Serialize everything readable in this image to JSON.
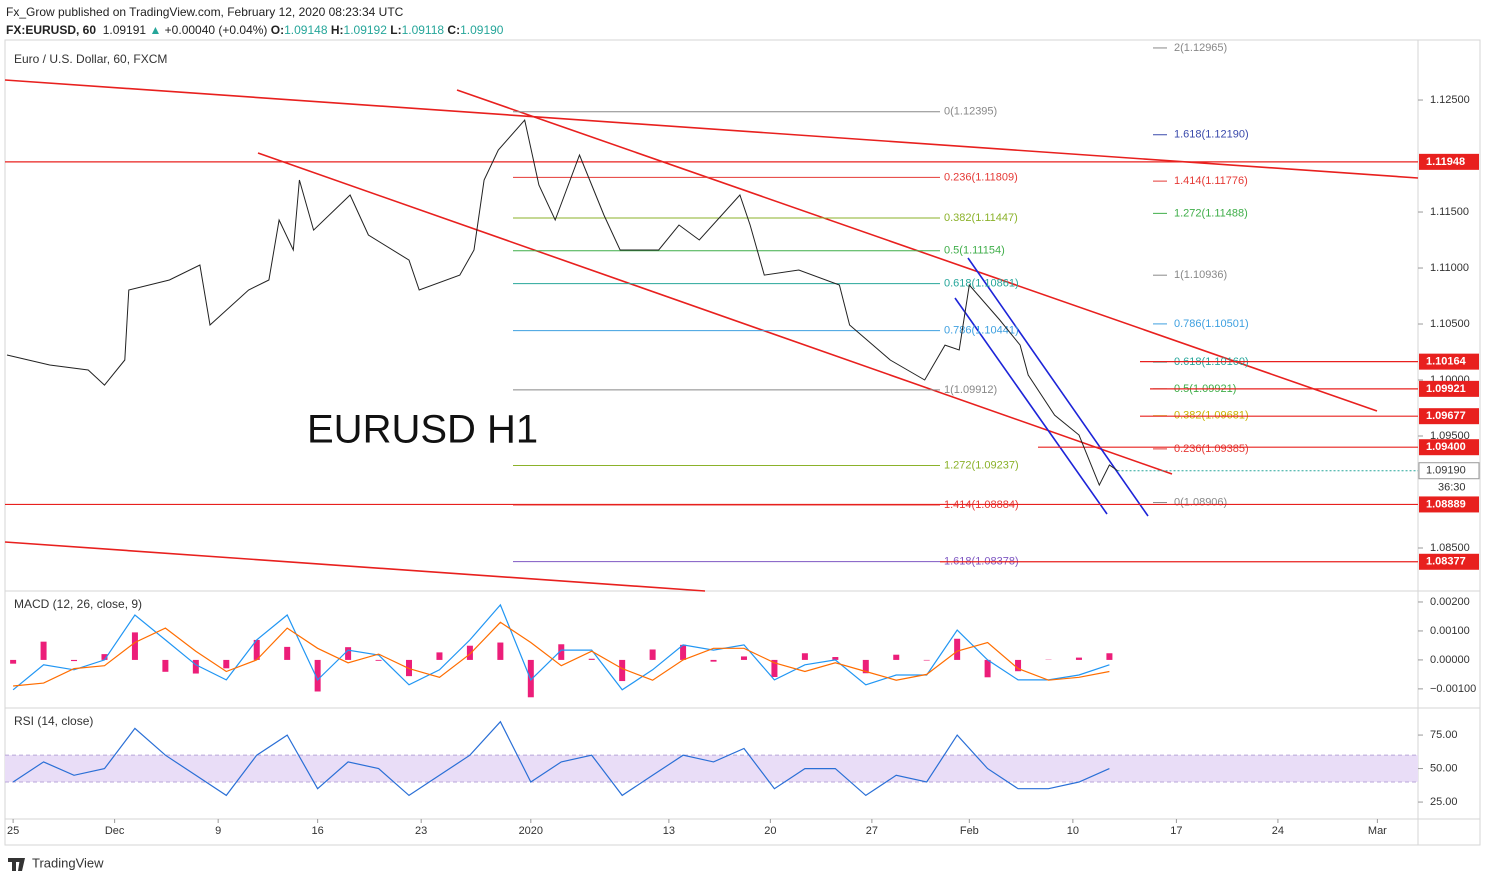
{
  "header": {
    "publisher": "Fx_Grow published on TradingView.com, February 12, 2020 08:23:34 UTC",
    "symbol": "FX:EURUSD, 60",
    "last": "1.09191",
    "change": "+0.00040 (+0.04%)",
    "ohlc": [
      {
        "label": "O:",
        "value": "1.09148"
      },
      {
        "label": "H:",
        "value": "1.09192"
      },
      {
        "label": "L:",
        "value": "1.09118"
      },
      {
        "label": "C:",
        "value": "1.09190"
      }
    ]
  },
  "watermark": "EURUSD H1",
  "footer": "TradingView",
  "chart_data": [
    {
      "type": "line",
      "title": "Euro / U.S. Dollar, 60, FXCM",
      "color": "#222222",
      "x": [
        -0.3,
        1.8,
        3.7,
        4.5,
        5.5,
        5.7,
        7.7,
        9.2,
        9.7,
        11.6,
        12.6,
        13.1,
        13.8,
        14.1,
        14.8,
        16.6,
        17.5,
        19.5,
        20.0,
        22.0,
        22.7,
        23.2,
        23.9,
        25.2,
        25.9,
        26.7,
        27.9,
        29.1,
        29.9,
        31.8,
        32.8,
        33.8,
        35.8,
        36.3,
        37.0,
        38.7,
        40.7,
        41.2,
        43.2,
        44.9,
        45.9,
        46.6,
        47.1,
        48.6,
        49.6,
        50.0,
        51.3,
        52.5,
        53.5,
        54.0,
        54.4
      ],
      "values": [
        1.10223,
        1.10134,
        1.10089,
        1.09955,
        1.10179,
        1.10804,
        1.10893,
        1.11027,
        1.10491,
        1.10804,
        1.10893,
        1.11429,
        1.11161,
        1.11786,
        1.11339,
        1.11652,
        1.11295,
        1.11071,
        1.10804,
        1.10937,
        1.11161,
        1.11786,
        1.12054,
        1.12321,
        1.11741,
        1.11429,
        1.12009,
        1.11473,
        1.11161,
        1.11161,
        1.11384,
        1.1125,
        1.11652,
        1.11384,
        1.10937,
        1.10982,
        1.10848,
        1.10491,
        1.10179,
        1.1,
        1.10312,
        1.10268,
        1.10848,
        1.10536,
        1.10312,
        1.10045,
        1.09687,
        1.09509,
        1.09062,
        1.09241,
        1.09191
      ],
      "xlim": [
        -0.4,
        69.2
      ],
      "ylim": [
        1.08125,
        1.13036
      ],
      "yticks": [
        {
          "value": 1.125,
          "label": "1.12500"
        },
        {
          "value": 1.115,
          "label": "1.11500"
        },
        {
          "value": 1.11,
          "label": "1.11000"
        },
        {
          "value": 1.105,
          "label": "1.10500"
        },
        {
          "value": 1.1,
          "label": "1.10000"
        },
        {
          "value": 1.095,
          "label": "1.09500"
        },
        {
          "value": 1.085,
          "label": "1.08500"
        }
      ],
      "levels": [
        {
          "value": 1.11948,
          "label": "1.11948"
        },
        {
          "value": 1.10164,
          "label": "1.10164"
        },
        {
          "value": 1.09921,
          "label": "1.09921"
        },
        {
          "value": 1.09677,
          "label": "1.09677"
        },
        {
          "value": 1.094,
          "label": "1.09400"
        },
        {
          "value": 1.08889,
          "label": "1.08889"
        },
        {
          "value": 1.08377,
          "label": "1.08377"
        }
      ],
      "last_price": {
        "value": 1.0919,
        "label": "1.09190"
      },
      "countdown": "36:30",
      "fib_left": [
        {
          "label": "0(1.12395)",
          "value": 1.12395,
          "color": "#888888"
        },
        {
          "label": "0.236(1.11809)",
          "value": 1.11809,
          "color": "#e53935"
        },
        {
          "label": "0.382(1.11447)",
          "value": 1.11447,
          "color": "#8bb22a"
        },
        {
          "label": "0.5(1.11154)",
          "value": 1.11154,
          "color": "#3fae49"
        },
        {
          "label": "0.618(1.10861)",
          "value": 1.10861,
          "color": "#26a69a"
        },
        {
          "label": "0.786(1.10441)",
          "value": 1.10441,
          "color": "#3ea0e0"
        },
        {
          "label": "1(1.09912)",
          "value": 1.09912,
          "color": "#888888"
        },
        {
          "label": "1.272(1.09237)",
          "value": 1.09237,
          "color": "#8bb22a"
        },
        {
          "label": "1.414(1.08884)",
          "value": 1.08884,
          "color": "#e53935"
        },
        {
          "label": "1.618(1.08378)",
          "value": 1.08378,
          "color": "#7e57c2"
        }
      ],
      "fib_right": [
        {
          "label": "2(1.12965)",
          "value": 1.12965,
          "color": "#888888"
        },
        {
          "label": "1.618(1.12190)",
          "value": 1.1219,
          "color": "#3949ab"
        },
        {
          "label": "1.414(1.11776)",
          "value": 1.11776,
          "color": "#e53935"
        },
        {
          "label": "1.272(1.11488)",
          "value": 1.11488,
          "color": "#3fae49"
        },
        {
          "label": "1(1.10936)",
          "value": 1.10936,
          "color": "#888888"
        },
        {
          "label": "0.786(1.10501)",
          "value": 1.10501,
          "color": "#3ea0e0"
        },
        {
          "label": "0.618(1.10160)",
          "value": 1.1016,
          "color": "#26a69a"
        },
        {
          "label": "0.5(1.09921)",
          "value": 1.09921,
          "color": "#3fae49"
        },
        {
          "label": "0.382(1.09681)",
          "value": 1.09681,
          "color": "#c8b400"
        },
        {
          "label": "0.236(1.09385)",
          "value": 1.09385,
          "color": "#e53935"
        },
        {
          "label": "0(1.08906)",
          "value": 1.08906,
          "color": "#888888"
        }
      ]
    },
    {
      "type": "macd",
      "title": "MACD (12, 26, close, 9)",
      "x": [
        0,
        1.5,
        3,
        4.5,
        6,
        7.5,
        9,
        10.5,
        12,
        13.5,
        15,
        16.5,
        18,
        19.5,
        21,
        22.5,
        24,
        25.5,
        27,
        28.5,
        30,
        31.5,
        33,
        34.5,
        36,
        37.5,
        39,
        40.5,
        42,
        43.5,
        45,
        46.5,
        48,
        49.5,
        51,
        52.5,
        54
      ],
      "series": [
        {
          "color": "#2196f3",
          "values": [
            -0.00103,
            -0.00017,
            -0.00034,
            0,
            0.00155,
            0.00069,
            -0.00017,
            -0.00069,
            0.00069,
            0.00155,
            -0.00069,
            0.00034,
            0.00017,
            -0.00086,
            -0.00034,
            0.00069,
            0.0019,
            -0.00069,
            0.00034,
            0.00034,
            -0.00103,
            -0.00034,
            0.00052,
            0.00034,
            0.00052,
            -0.00069,
            -0.00017,
            0,
            -0.00086,
            -0.00052,
            -0.00052,
            0.00103,
            0,
            -0.00069,
            -0.00069,
            -0.00052,
            -0.00017
          ]
        },
        {
          "color": "#ff6d00",
          "values": [
            -0.0009,
            -0.0008,
            -0.0003,
            -0.0002,
            0.0006,
            0.0011,
            0.0003,
            -0.0004,
            0,
            0.0011,
            0.0004,
            -0.0001,
            0.0002,
            -0.0003,
            -0.0006,
            0.0002,
            0.0013,
            0.0006,
            -0.0002,
            0.0003,
            -0.0003,
            -0.0007,
            0,
            0.0004,
            0.0004,
            -0.0001,
            -0.0004,
            -0.0001,
            -0.0004,
            -0.0007,
            -0.0005,
            0.0003,
            0.0006,
            -0.0003,
            -0.0007,
            -0.0006,
            -0.0004
          ]
        }
      ],
      "histogram": {
        "color": "#ec1e79",
        "values": [
          -0.00013,
          0.00063,
          -4e-05,
          0.0002,
          0.00095,
          -0.00041,
          -0.00047,
          -0.00029,
          0.00069,
          0.00045,
          -0.00109,
          0.00044,
          -3e-05,
          -0.00056,
          0.00026,
          0.00049,
          0.0006,
          -0.00129,
          0.00054,
          4e-05,
          -0.00073,
          0.00036,
          0.00052,
          -6e-05,
          0.00012,
          -0.00059,
          0.00023,
          0.0001,
          -0.00046,
          0.00018,
          -2e-05,
          0.00073,
          -0.0006,
          -0.00039,
          1e-05,
          8e-05,
          0.00023
        ]
      },
      "xlim": [
        -0.4,
        69.2
      ],
      "ylim": [
        -0.00166,
        0.00231
      ],
      "yticks": [
        {
          "value": 0.002,
          "label": "0.00200"
        },
        {
          "value": 0.001,
          "label": "0.00100"
        },
        {
          "value": 0,
          "label": "0.00000"
        },
        {
          "value": -0.001,
          "label": "−0.00100"
        }
      ]
    },
    {
      "type": "rsi",
      "title": "RSI (14, close)",
      "x": [
        0,
        1.5,
        3,
        4.5,
        6,
        7.5,
        9,
        10.5,
        12,
        13.5,
        15,
        16.5,
        18,
        19.5,
        21,
        22.5,
        24,
        25.5,
        27,
        28.5,
        30,
        31.5,
        33,
        34.5,
        36,
        37.5,
        39,
        40.5,
        42,
        43.5,
        45,
        46.5,
        48,
        49.5,
        51,
        52.5,
        54
      ],
      "series": [
        {
          "color": "#2a6fd6",
          "values": [
            40,
            55,
            45,
            50,
            80,
            60,
            45,
            30,
            60,
            75,
            35,
            55,
            50,
            30,
            45,
            60,
            85,
            40,
            55,
            60,
            30,
            45,
            60,
            55,
            65,
            35,
            50,
            50,
            30,
            45,
            40,
            75,
            50,
            35,
            35,
            40,
            50
          ]
        }
      ],
      "band": [
        40,
        60
      ],
      "band_color": "#e9ddf7",
      "xlim": [
        -0.4,
        69.2
      ],
      "ylim": [
        13.1,
        93.7
      ],
      "yticks": [
        {
          "value": 75,
          "label": "75.00"
        },
        {
          "value": 50,
          "label": "50.00"
        },
        {
          "value": 25,
          "label": "25.00"
        }
      ],
      "xticks": [
        {
          "value": 0,
          "label": "25"
        },
        {
          "value": 5,
          "label": "Dec"
        },
        {
          "value": 10.1,
          "label": "9"
        },
        {
          "value": 15,
          "label": "16"
        },
        {
          "value": 20.1,
          "label": "23"
        },
        {
          "value": 25.5,
          "label": "2020"
        },
        {
          "value": 32.3,
          "label": "13"
        },
        {
          "value": 37.3,
          "label": "20"
        },
        {
          "value": 42.3,
          "label": "27"
        },
        {
          "value": 47.1,
          "label": "Feb"
        },
        {
          "value": 52.2,
          "label": "10"
        },
        {
          "value": 57.3,
          "label": "17"
        },
        {
          "value": 62.3,
          "label": "24"
        },
        {
          "value": 67.2,
          "label": "Mar"
        }
      ]
    }
  ]
}
